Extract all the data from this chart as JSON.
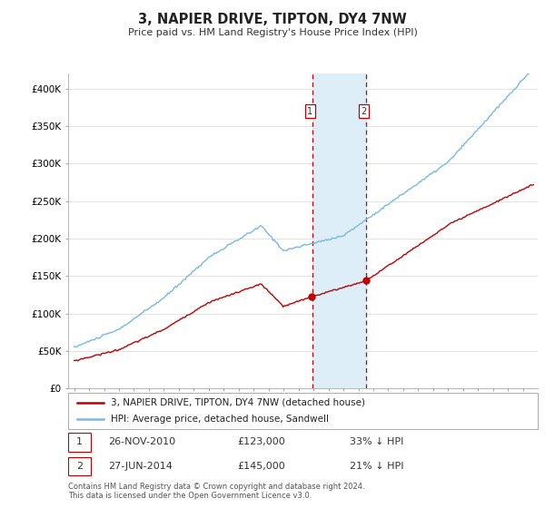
{
  "title": "3, NAPIER DRIVE, TIPTON, DY4 7NW",
  "subtitle": "Price paid vs. HM Land Registry's House Price Index (HPI)",
  "legend_label1": "3, NAPIER DRIVE, TIPTON, DY4 7NW (detached house)",
  "legend_label2": "HPI: Average price, detached house, Sandwell",
  "sale1_date": "26-NOV-2010",
  "sale1_price": 123000,
  "sale1_pct": "33%",
  "sale2_date": "27-JUN-2014",
  "sale2_price": 145000,
  "sale2_pct": "21%",
  "footer": "Contains HM Land Registry data © Crown copyright and database right 2024.\nThis data is licensed under the Open Government Licence v3.0.",
  "hpi_color": "#7ab9de",
  "price_color": "#c00000",
  "sale_dot_color": "#c00000",
  "vline_color": "#c00000",
  "highlight_color": "#ddeef8",
  "ylim": [
    0,
    420000
  ],
  "yticks": [
    0,
    50000,
    100000,
    150000,
    200000,
    250000,
    300000,
    350000,
    400000
  ],
  "start_year": 1995,
  "end_year": 2025
}
